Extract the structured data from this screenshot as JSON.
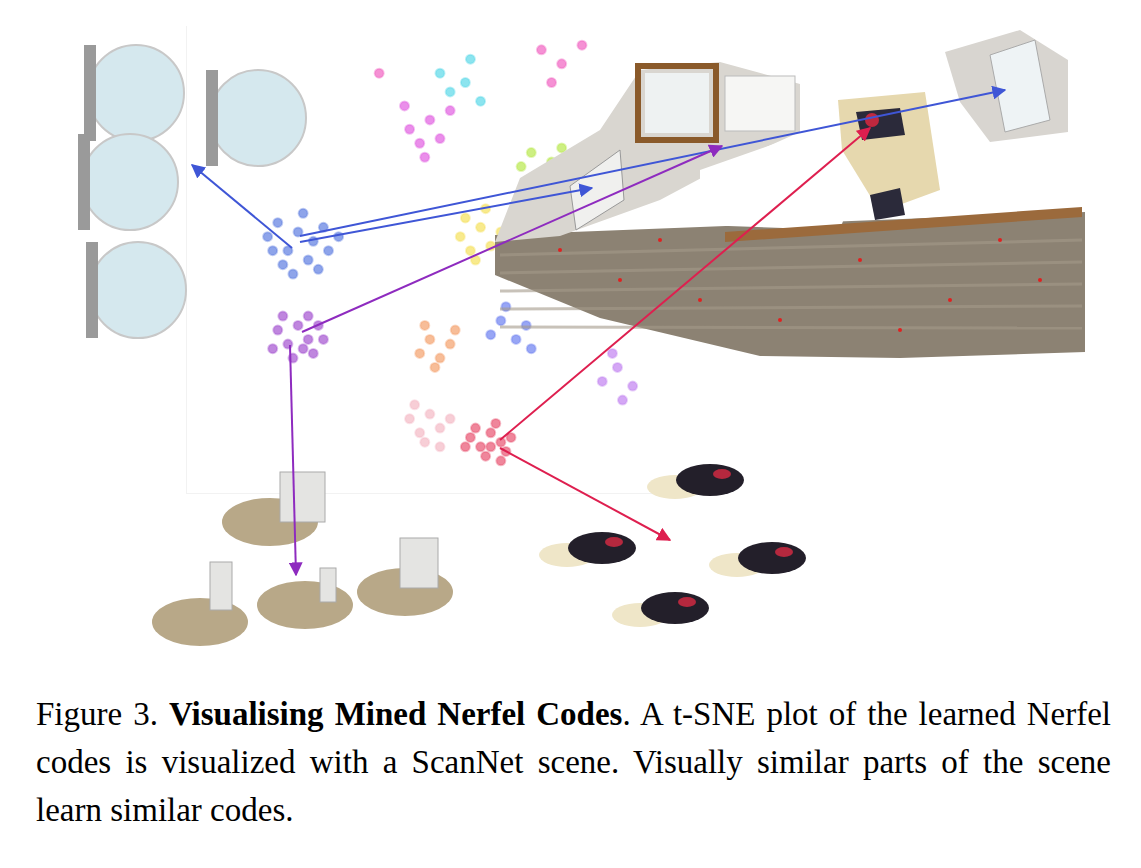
{
  "figure": {
    "label": "Figure 3.",
    "title": "Visualising Mined Nerfel Codes",
    "caption": ". A t-SNE plot of the learned Nerfel codes is visualized with a ScanNet scene. Visually similar parts of the scene learn similar codes."
  },
  "chart_data": {
    "type": "scatter",
    "xlim": [
      0,
      100
    ],
    "ylim": [
      0,
      100
    ],
    "grid": false,
    "tick_labels": false,
    "marker": "circle",
    "series": [
      {
        "color": "#5b7be0",
        "x": [
          16,
          18,
          20,
          22,
          24,
          25,
          27,
          19,
          23,
          28,
          21,
          26,
          17,
          30
        ],
        "y": [
          55,
          58,
          52,
          56,
          50,
          54,
          57,
          49,
          60,
          52,
          47,
          48,
          52,
          55
        ]
      },
      {
        "color": "#a24fcf",
        "x": [
          18,
          20,
          22,
          24,
          25,
          21,
          19,
          26,
          23,
          27,
          17,
          24
        ],
        "y": [
          35,
          32,
          36,
          33,
          30,
          29,
          38,
          36,
          31,
          33,
          31,
          38
        ]
      },
      {
        "color": "#e8506e",
        "x": [
          56,
          58,
          60,
          62,
          59,
          61,
          63,
          57,
          64,
          60,
          55,
          62
        ],
        "y": [
          12,
          10,
          13,
          11,
          8,
          15,
          9,
          14,
          12,
          10,
          10,
          7
        ]
      },
      {
        "color": "#f4b8c4",
        "x": [
          44,
          46,
          48,
          50,
          47,
          52,
          45,
          50
        ],
        "y": [
          16,
          13,
          17,
          14,
          11,
          16,
          19,
          10
        ]
      },
      {
        "color": "#f4a06a",
        "x": [
          46,
          48,
          50,
          52,
          49,
          53,
          47
        ],
        "y": [
          30,
          33,
          29,
          32,
          27,
          35,
          36
        ]
      },
      {
        "color": "#f5e05a",
        "x": [
          54,
          56,
          58,
          60,
          57,
          62,
          55,
          59
        ],
        "y": [
          55,
          52,
          57,
          53,
          50,
          56,
          59,
          61
        ]
      },
      {
        "color": "#b6e84a",
        "x": [
          66,
          68,
          70,
          72,
          69,
          74
        ],
        "y": [
          70,
          73,
          68,
          71,
          65,
          74
        ]
      },
      {
        "color": "#e05ce0",
        "x": [
          44,
          46,
          48,
          50,
          47,
          52,
          43
        ],
        "y": [
          78,
          75,
          80,
          76,
          72,
          82,
          83
        ]
      },
      {
        "color": "#58d8e8",
        "x": [
          52,
          55,
          58,
          50,
          56
        ],
        "y": [
          86,
          88,
          84,
          90,
          93
        ]
      },
      {
        "color": "#f060c0",
        "x": [
          70,
          74,
          78,
          72,
          38
        ],
        "y": [
          95,
          92,
          96,
          88,
          90
        ]
      },
      {
        "color": "#6a7ef0",
        "x": [
          60,
          62,
          65,
          67,
          63,
          68
        ],
        "y": [
          34,
          37,
          33,
          36,
          40,
          31
        ]
      },
      {
        "color": "#c080f0",
        "x": [
          82,
          85,
          88,
          86,
          84
        ],
        "y": [
          24,
          27,
          23,
          20,
          30
        ]
      }
    ]
  }
}
